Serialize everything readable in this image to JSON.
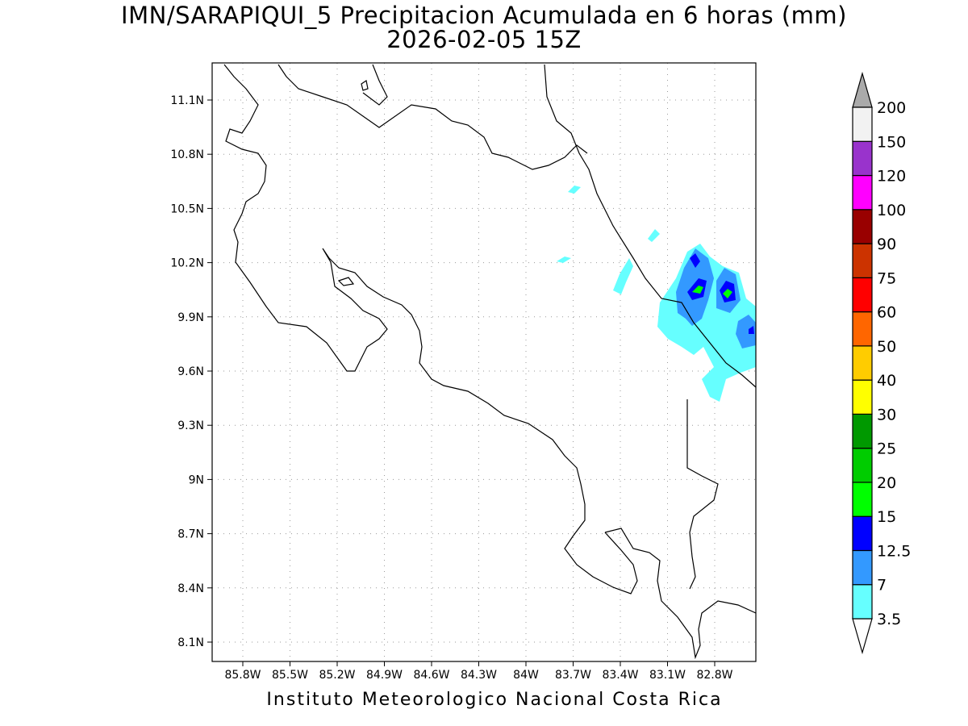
{
  "title_line1": "IMN/SARAPIQUI_5 Precipitacion Acumulada en 6 horas (mm)",
  "title_line2": "2026-02-05 15Z",
  "footer": "Instituto Meteorologico Nacional Costa Rica",
  "map": {
    "lon_range": [
      -86.1,
      -83.35
    ],
    "lat_range": [
      8.0,
      11.3
    ],
    "lat_ticks": [
      "11.1N",
      "10.8N",
      "10.5N",
      "10.2N",
      "9.9N",
      "9.6N",
      "9.3N",
      "9N",
      "8.7N",
      "8.4N",
      "8.1N"
    ],
    "lon_ticks": [
      "85.8W",
      "85.5W",
      "85.2W",
      "84.9W",
      "84.6W",
      "84.3W",
      "84W",
      "83.7W",
      "83.4W",
      "83.1W",
      "82.8W"
    ],
    "grid": "dotted",
    "line_color": "#000000"
  },
  "colorbar": {
    "levels": [
      "3.5",
      "7",
      "12.5",
      "15",
      "20",
      "25",
      "30",
      "40",
      "50",
      "60",
      "75",
      "90",
      "100",
      "120",
      "150",
      "200"
    ],
    "colors": [
      "#66ffff",
      "#3399ff",
      "#0000ff",
      "#00ff00",
      "#00cc00",
      "#009900",
      "#ffff00",
      "#ffcc00",
      "#ff6600",
      "#ff0000",
      "#cc3300",
      "#990000",
      "#ff00ff",
      "#9933cc",
      "#f2f2f2"
    ],
    "over_color": "#aaaaaa",
    "under_color": "#ffffff"
  }
}
